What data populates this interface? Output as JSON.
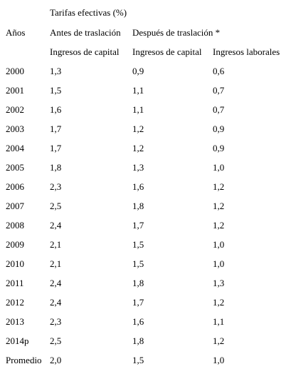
{
  "table": {
    "super_header": "Tarifas efectivas (%)",
    "header_year": "Años",
    "header_before": "Antes de traslación",
    "header_after": "Después de traslación *",
    "sub_col1": "Ingresos de capital",
    "sub_col2": "Ingresos de capital",
    "sub_col3": "Ingresos laborales",
    "rows": [
      {
        "year": "2000",
        "before_capital": "1,3",
        "after_capital": "0,9",
        "after_labor": "0,6"
      },
      {
        "year": "2001",
        "before_capital": "1,5",
        "after_capital": "1,1",
        "after_labor": "0,7"
      },
      {
        "year": "2002",
        "before_capital": "1,6",
        "after_capital": "1,1",
        "after_labor": "0,7"
      },
      {
        "year": "2003",
        "before_capital": "1,7",
        "after_capital": "1,2",
        "after_labor": "0,9"
      },
      {
        "year": "2004",
        "before_capital": "1,7",
        "after_capital": "1,2",
        "after_labor": "0,9"
      },
      {
        "year": "2005",
        "before_capital": "1,8",
        "after_capital": "1,3",
        "after_labor": "1,0"
      },
      {
        "year": "2006",
        "before_capital": "2,3",
        "after_capital": "1,6",
        "after_labor": "1,2"
      },
      {
        "year": "2007",
        "before_capital": "2,5",
        "after_capital": "1,8",
        "after_labor": "1,2"
      },
      {
        "year": "2008",
        "before_capital": "2,4",
        "after_capital": "1,7",
        "after_labor": "1,2"
      },
      {
        "year": "2009",
        "before_capital": "2,1",
        "after_capital": "1,5",
        "after_labor": "1,0"
      },
      {
        "year": "2010",
        "before_capital": "2,1",
        "after_capital": "1,5",
        "after_labor": "1,0"
      },
      {
        "year": "2011",
        "before_capital": "2,4",
        "after_capital": "1,8",
        "after_labor": "1,3"
      },
      {
        "year": "2012",
        "before_capital": "2,4",
        "after_capital": "1,7",
        "after_labor": "1,2"
      },
      {
        "year": "2013",
        "before_capital": "2,3",
        "after_capital": "1,6",
        "after_labor": "1,1"
      },
      {
        "year": "2014p",
        "before_capital": "2,5",
        "after_capital": "1,8",
        "after_labor": "1,2"
      },
      {
        "year": "Promedio",
        "before_capital": "2,0",
        "after_capital": "1,5",
        "after_labor": "1,0"
      }
    ]
  }
}
